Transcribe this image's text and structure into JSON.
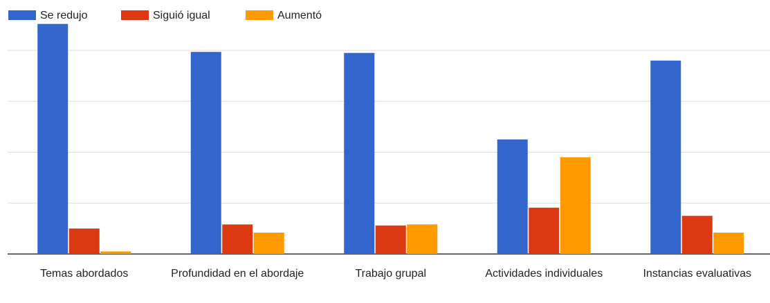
{
  "chart_data": {
    "type": "bar",
    "categories": [
      "Temas abordados",
      "Profundidad en el abordaje",
      "Trabajo grupal",
      "Actividades individuales",
      "Instancias evaluativas"
    ],
    "series": [
      {
        "name": "Se redujo",
        "color": "#3366cc",
        "values": [
          4.52,
          3.97,
          3.95,
          2.25,
          3.8
        ]
      },
      {
        "name": "Siguió igual",
        "color": "#dc3912",
        "values": [
          0.5,
          0.58,
          0.56,
          0.91,
          0.75
        ]
      },
      {
        "name": "Aumentó",
        "color": "#ff9900",
        "values": [
          0.05,
          0.42,
          0.58,
          1.9,
          0.42
        ]
      }
    ],
    "ylim": [
      0,
      5
    ],
    "yticks": [
      0,
      1,
      2,
      3,
      4
    ],
    "grid": true,
    "legend": "top-left"
  }
}
